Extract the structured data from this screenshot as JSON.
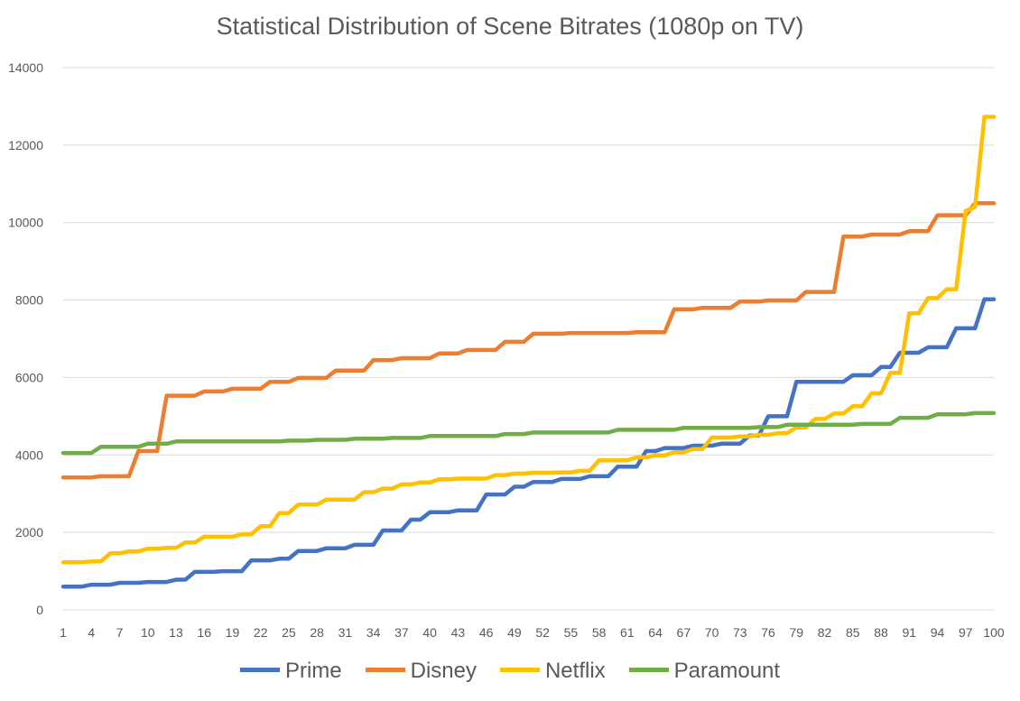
{
  "chart_data": {
    "type": "line",
    "title": "Statistical Distribution of Scene Bitrates (1080p on TV)",
    "xlabel": "",
    "ylabel": "",
    "ylim": [
      0,
      14000
    ],
    "yticks": [
      "0",
      "2000",
      "4000",
      "6000",
      "8000",
      "10000",
      "12000",
      "14000"
    ],
    "x": [
      1,
      2,
      3,
      4,
      5,
      6,
      7,
      8,
      9,
      10,
      11,
      12,
      13,
      14,
      15,
      16,
      17,
      18,
      19,
      20,
      21,
      22,
      23,
      24,
      25,
      26,
      27,
      28,
      29,
      30,
      31,
      32,
      33,
      34,
      35,
      36,
      37,
      38,
      39,
      40,
      41,
      42,
      43,
      44,
      45,
      46,
      47,
      48,
      49,
      50,
      51,
      52,
      53,
      54,
      55,
      56,
      57,
      58,
      59,
      60,
      61,
      62,
      63,
      64,
      65,
      66,
      67,
      68,
      69,
      70,
      71,
      72,
      73,
      74,
      75,
      76,
      77,
      78,
      79,
      80,
      81,
      82,
      83,
      84,
      85,
      86,
      87,
      88,
      89,
      90,
      91,
      92,
      93,
      94,
      95,
      96,
      97,
      98,
      99,
      100
    ],
    "xticks": [
      "1",
      "4",
      "7",
      "10",
      "13",
      "16",
      "19",
      "22",
      "25",
      "28",
      "31",
      "34",
      "37",
      "40",
      "43",
      "46",
      "49",
      "52",
      "55",
      "58",
      "61",
      "64",
      "67",
      "70",
      "73",
      "76",
      "79",
      "82",
      "85",
      "88",
      "91",
      "94",
      "97",
      "100"
    ],
    "legend_position": "bottom",
    "series": [
      {
        "name": "Prime",
        "color": "#4472C4",
        "values": [
          600,
          600,
          600,
          650,
          650,
          650,
          700,
          700,
          700,
          720,
          720,
          720,
          780,
          780,
          980,
          980,
          980,
          1000,
          1000,
          1000,
          1280,
          1280,
          1280,
          1320,
          1320,
          1520,
          1520,
          1520,
          1590,
          1590,
          1590,
          1680,
          1680,
          1680,
          2050,
          2050,
          2050,
          2330,
          2330,
          2520,
          2520,
          2520,
          2570,
          2570,
          2570,
          2980,
          2980,
          2980,
          3180,
          3180,
          3300,
          3300,
          3300,
          3380,
          3380,
          3380,
          3450,
          3450,
          3450,
          3700,
          3700,
          3700,
          4100,
          4100,
          4180,
          4180,
          4180,
          4240,
          4240,
          4240,
          4290,
          4290,
          4290,
          4500,
          4500,
          5000,
          5000,
          5000,
          5890,
          5890,
          5890,
          5890,
          5890,
          5890,
          6060,
          6060,
          6060,
          6270,
          6270,
          6640,
          6640,
          6640,
          6780,
          6780,
          6780,
          7270,
          7270,
          7270,
          8020,
          8020
        ]
      },
      {
        "name": "Disney",
        "color": "#ED7D31",
        "values": [
          3420,
          3420,
          3420,
          3420,
          3450,
          3450,
          3450,
          3450,
          4100,
          4100,
          4100,
          5530,
          5530,
          5530,
          5530,
          5640,
          5640,
          5640,
          5710,
          5710,
          5710,
          5710,
          5890,
          5890,
          5890,
          5990,
          5990,
          5990,
          5990,
          6180,
          6180,
          6180,
          6180,
          6450,
          6450,
          6450,
          6500,
          6500,
          6500,
          6500,
          6620,
          6620,
          6620,
          6710,
          6710,
          6710,
          6710,
          6920,
          6920,
          6920,
          7130,
          7130,
          7130,
          7130,
          7150,
          7150,
          7150,
          7150,
          7150,
          7150,
          7150,
          7170,
          7170,
          7170,
          7170,
          7760,
          7760,
          7760,
          7800,
          7800,
          7800,
          7800,
          7960,
          7960,
          7960,
          7990,
          7990,
          7990,
          7990,
          8210,
          8210,
          8210,
          8210,
          9640,
          9640,
          9640,
          9690,
          9690,
          9690,
          9690,
          9780,
          9780,
          9780,
          10190,
          10190,
          10190,
          10190,
          10500,
          10500,
          10500
        ]
      },
      {
        "name": "Netflix",
        "color": "#FFC000",
        "values": [
          1230,
          1230,
          1230,
          1250,
          1250,
          1460,
          1460,
          1510,
          1510,
          1580,
          1580,
          1600,
          1600,
          1740,
          1740,
          1890,
          1890,
          1890,
          1890,
          1950,
          1950,
          2160,
          2160,
          2500,
          2500,
          2720,
          2720,
          2720,
          2850,
          2850,
          2850,
          2850,
          3040,
          3040,
          3130,
          3130,
          3240,
          3240,
          3290,
          3290,
          3370,
          3370,
          3390,
          3390,
          3390,
          3390,
          3480,
          3480,
          3520,
          3520,
          3540,
          3540,
          3540,
          3550,
          3550,
          3590,
          3590,
          3860,
          3860,
          3860,
          3860,
          3940,
          3940,
          3990,
          3990,
          4070,
          4070,
          4150,
          4150,
          4450,
          4450,
          4450,
          4480,
          4480,
          4520,
          4520,
          4560,
          4560,
          4710,
          4710,
          4930,
          4930,
          5070,
          5070,
          5260,
          5260,
          5590,
          5590,
          6120,
          6120,
          7660,
          7660,
          8050,
          8050,
          8280,
          8280,
          10300,
          10400,
          12730,
          12730
        ]
      },
      {
        "name": "Paramount",
        "color": "#70AD47",
        "values": [
          4050,
          4050,
          4050,
          4050,
          4210,
          4210,
          4210,
          4210,
          4210,
          4290,
          4290,
          4290,
          4350,
          4350,
          4350,
          4350,
          4350,
          4350,
          4350,
          4350,
          4350,
          4350,
          4350,
          4350,
          4370,
          4370,
          4370,
          4390,
          4390,
          4390,
          4390,
          4420,
          4420,
          4420,
          4420,
          4440,
          4440,
          4440,
          4440,
          4490,
          4490,
          4490,
          4490,
          4490,
          4490,
          4490,
          4490,
          4540,
          4540,
          4540,
          4580,
          4580,
          4580,
          4580,
          4580,
          4580,
          4580,
          4580,
          4580,
          4650,
          4650,
          4650,
          4650,
          4650,
          4650,
          4650,
          4700,
          4700,
          4700,
          4700,
          4700,
          4700,
          4700,
          4700,
          4720,
          4720,
          4720,
          4780,
          4780,
          4780,
          4780,
          4780,
          4780,
          4780,
          4780,
          4800,
          4800,
          4800,
          4800,
          4960,
          4960,
          4960,
          4960,
          5050,
          5050,
          5050,
          5050,
          5080,
          5080,
          5080
        ]
      }
    ]
  }
}
